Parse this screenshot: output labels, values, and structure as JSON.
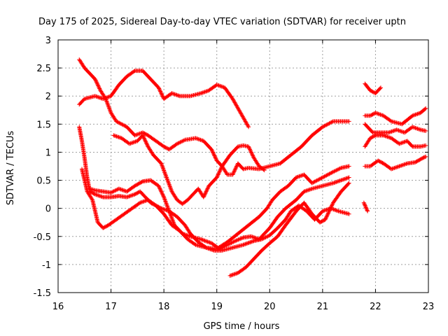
{
  "chart_data": {
    "type": "scatter",
    "title": "Day 175 of 2025, Sidereal Day-to-day VTEC variation (SDTVAR) for receiver uptn",
    "xlabel": "GPS time / hours",
    "ylabel": "SDTVAR / TECUs",
    "xlim": [
      16,
      23
    ],
    "ylim": [
      -1.5,
      3
    ],
    "xticks": [
      "16",
      "17",
      "18",
      "19",
      "20",
      "21",
      "22",
      "23"
    ],
    "yticks": [
      "-1.5",
      "-1",
      "-0.5",
      "0",
      "0.5",
      "1",
      "1.5",
      "2",
      "2.5",
      "3"
    ],
    "grid": true,
    "marker": "+",
    "color": "#ff0000",
    "series": [
      {
        "name": "s1",
        "points": [
          [
            16.4,
            2.65
          ],
          [
            16.5,
            2.5
          ],
          [
            16.7,
            2.3
          ],
          [
            16.8,
            2.1
          ],
          [
            16.9,
            1.95
          ],
          [
            17.0,
            1.7
          ],
          [
            17.1,
            1.55
          ],
          [
            17.3,
            1.45
          ],
          [
            17.45,
            1.3
          ],
          [
            17.6,
            1.35
          ],
          [
            17.7,
            1.3
          ],
          [
            17.85,
            1.2
          ],
          [
            18.0,
            1.1
          ],
          [
            18.1,
            1.05
          ],
          [
            18.25,
            1.15
          ],
          [
            18.4,
            1.22
          ],
          [
            18.6,
            1.25
          ],
          [
            18.75,
            1.2
          ],
          [
            18.9,
            1.05
          ],
          [
            19.0,
            0.85
          ],
          [
            19.1,
            0.75
          ],
          [
            19.2,
            0.6
          ],
          [
            19.3,
            0.6
          ],
          [
            19.4,
            0.8
          ],
          [
            19.5,
            0.7
          ],
          [
            19.6,
            0.72
          ],
          [
            19.8,
            0.7
          ],
          [
            20.0,
            0.75
          ],
          [
            20.2,
            0.8
          ],
          [
            20.4,
            0.95
          ],
          [
            20.6,
            1.1
          ],
          [
            20.8,
            1.3
          ],
          [
            21.0,
            1.45
          ],
          [
            21.2,
            1.55
          ],
          [
            21.5,
            1.55
          ]
        ]
      },
      {
        "name": "s2",
        "points": [
          [
            16.4,
            1.85
          ],
          [
            16.5,
            1.95
          ],
          [
            16.7,
            2.0
          ],
          [
            16.85,
            1.95
          ],
          [
            17.0,
            2.0
          ],
          [
            17.15,
            2.2
          ],
          [
            17.3,
            2.35
          ],
          [
            17.45,
            2.45
          ],
          [
            17.6,
            2.45
          ],
          [
            17.75,
            2.3
          ],
          [
            17.9,
            2.15
          ],
          [
            18.0,
            1.95
          ],
          [
            18.15,
            2.05
          ],
          [
            18.3,
            2.0
          ],
          [
            18.5,
            2.0
          ],
          [
            18.7,
            2.05
          ],
          [
            18.85,
            2.1
          ],
          [
            19.0,
            2.2
          ],
          [
            19.15,
            2.15
          ],
          [
            19.3,
            1.95
          ],
          [
            19.45,
            1.7
          ],
          [
            19.6,
            1.45
          ]
        ]
      },
      {
        "name": "s3",
        "points": [
          [
            17.05,
            1.3
          ],
          [
            17.2,
            1.25
          ],
          [
            17.35,
            1.15
          ],
          [
            17.5,
            1.2
          ],
          [
            17.6,
            1.3
          ],
          [
            17.7,
            1.1
          ],
          [
            17.8,
            0.95
          ],
          [
            17.95,
            0.8
          ],
          [
            18.05,
            0.55
          ],
          [
            18.15,
            0.3
          ],
          [
            18.25,
            0.15
          ],
          [
            18.35,
            0.08
          ],
          [
            18.45,
            0.15
          ],
          [
            18.55,
            0.25
          ],
          [
            18.65,
            0.35
          ],
          [
            18.75,
            0.2
          ],
          [
            18.85,
            0.4
          ],
          [
            19.0,
            0.55
          ],
          [
            19.1,
            0.75
          ],
          [
            19.25,
            0.95
          ],
          [
            19.4,
            1.1
          ],
          [
            19.5,
            1.12
          ],
          [
            19.6,
            1.1
          ],
          [
            19.7,
            0.9
          ],
          [
            19.8,
            0.75
          ],
          [
            19.9,
            0.68
          ]
        ]
      },
      {
        "name": "s4",
        "points": [
          [
            16.4,
            1.45
          ],
          [
            16.45,
            1.2
          ],
          [
            16.5,
            0.9
          ],
          [
            16.55,
            0.55
          ],
          [
            16.6,
            0.3
          ],
          [
            16.7,
            0.25
          ],
          [
            16.85,
            0.2
          ],
          [
            17.0,
            0.2
          ],
          [
            17.15,
            0.22
          ],
          [
            17.3,
            0.2
          ],
          [
            17.45,
            0.25
          ],
          [
            17.55,
            0.3
          ],
          [
            17.65,
            0.2
          ],
          [
            17.75,
            0.1
          ],
          [
            17.85,
            0.05
          ],
          [
            17.95,
            0.0
          ],
          [
            18.1,
            -0.05
          ],
          [
            18.25,
            -0.15
          ],
          [
            18.4,
            -0.3
          ],
          [
            18.5,
            -0.45
          ],
          [
            18.65,
            -0.6
          ],
          [
            18.8,
            -0.7
          ],
          [
            18.95,
            -0.75
          ],
          [
            19.1,
            -0.75
          ],
          [
            19.3,
            -0.7
          ],
          [
            19.5,
            -0.65
          ],
          [
            19.7,
            -0.58
          ],
          [
            19.85,
            -0.55
          ],
          [
            20.0,
            -0.48
          ],
          [
            20.15,
            -0.35
          ],
          [
            20.3,
            -0.2
          ],
          [
            20.4,
            -0.05
          ],
          [
            20.55,
            0.05
          ],
          [
            20.7,
            -0.05
          ],
          [
            20.85,
            -0.2
          ],
          [
            21.0,
            -0.05
          ],
          [
            21.15,
            0.0
          ],
          [
            21.3,
            -0.05
          ],
          [
            21.5,
            -0.1
          ]
        ]
      },
      {
        "name": "s5",
        "points": [
          [
            16.45,
            0.7
          ],
          [
            16.55,
            0.3
          ],
          [
            16.65,
            0.15
          ],
          [
            16.75,
            -0.25
          ],
          [
            16.85,
            -0.35
          ],
          [
            16.95,
            -0.3
          ],
          [
            17.1,
            -0.2
          ],
          [
            17.25,
            -0.1
          ],
          [
            17.4,
            0.0
          ],
          [
            17.55,
            0.1
          ],
          [
            17.7,
            0.15
          ],
          [
            17.85,
            0.05
          ],
          [
            18.0,
            -0.1
          ],
          [
            18.15,
            -0.3
          ],
          [
            18.3,
            -0.4
          ],
          [
            18.45,
            -0.55
          ],
          [
            18.6,
            -0.65
          ],
          [
            18.8,
            -0.7
          ],
          [
            19.0,
            -0.72
          ],
          [
            19.2,
            -0.6
          ],
          [
            19.4,
            -0.45
          ],
          [
            19.6,
            -0.3
          ],
          [
            19.8,
            -0.15
          ],
          [
            19.95,
            0.0
          ],
          [
            20.05,
            0.15
          ],
          [
            20.2,
            0.3
          ],
          [
            20.35,
            0.4
          ],
          [
            20.5,
            0.55
          ],
          [
            20.65,
            0.6
          ],
          [
            20.8,
            0.45
          ],
          [
            21.0,
            0.55
          ],
          [
            21.2,
            0.65
          ],
          [
            21.35,
            0.72
          ],
          [
            21.5,
            0.75
          ]
        ]
      },
      {
        "name": "s6",
        "points": [
          [
            16.6,
            0.35
          ],
          [
            16.7,
            0.32
          ],
          [
            16.85,
            0.3
          ],
          [
            17.0,
            0.28
          ],
          [
            17.15,
            0.35
          ],
          [
            17.3,
            0.3
          ],
          [
            17.45,
            0.4
          ],
          [
            17.6,
            0.48
          ],
          [
            17.75,
            0.5
          ],
          [
            17.9,
            0.4
          ],
          [
            18.0,
            0.2
          ],
          [
            18.1,
            -0.05
          ],
          [
            18.2,
            -0.3
          ],
          [
            18.35,
            -0.45
          ],
          [
            18.5,
            -0.5
          ],
          [
            18.7,
            -0.55
          ],
          [
            18.9,
            -0.62
          ],
          [
            19.05,
            -0.72
          ],
          [
            19.2,
            -0.65
          ],
          [
            19.35,
            -0.58
          ],
          [
            19.5,
            -0.52
          ],
          [
            19.65,
            -0.5
          ],
          [
            19.8,
            -0.55
          ],
          [
            19.9,
            -0.45
          ],
          [
            20.0,
            -0.35
          ],
          [
            20.15,
            -0.15
          ],
          [
            20.3,
            0.0
          ],
          [
            20.5,
            0.15
          ],
          [
            20.65,
            0.3
          ],
          [
            20.8,
            0.35
          ],
          [
            21.0,
            0.4
          ],
          [
            21.2,
            0.45
          ],
          [
            21.5,
            0.55
          ]
        ]
      },
      {
        "name": "s7",
        "points": [
          [
            19.25,
            -1.2
          ],
          [
            19.4,
            -1.15
          ],
          [
            19.55,
            -1.05
          ],
          [
            19.7,
            -0.9
          ],
          [
            19.85,
            -0.75
          ],
          [
            20.0,
            -0.62
          ],
          [
            20.15,
            -0.5
          ],
          [
            20.3,
            -0.3
          ],
          [
            20.5,
            -0.05
          ],
          [
            20.65,
            0.1
          ],
          [
            20.8,
            -0.1
          ],
          [
            20.95,
            -0.25
          ],
          [
            21.05,
            -0.2
          ],
          [
            21.2,
            0.1
          ],
          [
            21.35,
            0.3
          ],
          [
            21.5,
            0.45
          ]
        ]
      },
      {
        "name": "s8",
        "points": [
          [
            21.8,
            2.22
          ],
          [
            21.9,
            2.1
          ],
          [
            22.0,
            2.05
          ],
          [
            22.1,
            2.15
          ]
        ]
      },
      {
        "name": "s9",
        "points": [
          [
            21.8,
            1.65
          ],
          [
            21.9,
            1.65
          ],
          [
            22.0,
            1.7
          ],
          [
            22.15,
            1.65
          ],
          [
            22.3,
            1.55
          ],
          [
            22.5,
            1.5
          ],
          [
            22.7,
            1.65
          ],
          [
            22.85,
            1.7
          ],
          [
            22.95,
            1.78
          ]
        ]
      },
      {
        "name": "s10",
        "points": [
          [
            21.8,
            1.5
          ],
          [
            21.95,
            1.35
          ],
          [
            22.1,
            1.35
          ],
          [
            22.25,
            1.35
          ],
          [
            22.4,
            1.4
          ],
          [
            22.55,
            1.35
          ],
          [
            22.7,
            1.45
          ],
          [
            22.85,
            1.4
          ],
          [
            22.95,
            1.38
          ]
        ]
      },
      {
        "name": "s11",
        "points": [
          [
            21.8,
            1.1
          ],
          [
            21.9,
            1.25
          ],
          [
            22.0,
            1.3
          ],
          [
            22.15,
            1.3
          ],
          [
            22.3,
            1.25
          ],
          [
            22.45,
            1.15
          ],
          [
            22.6,
            1.2
          ],
          [
            22.7,
            1.1
          ],
          [
            22.85,
            1.1
          ],
          [
            22.95,
            1.12
          ]
        ]
      },
      {
        "name": "s12",
        "points": [
          [
            21.8,
            0.75
          ],
          [
            21.9,
            0.75
          ],
          [
            22.05,
            0.85
          ],
          [
            22.15,
            0.8
          ],
          [
            22.3,
            0.7
          ],
          [
            22.45,
            0.75
          ],
          [
            22.6,
            0.8
          ],
          [
            22.75,
            0.82
          ],
          [
            22.9,
            0.9
          ],
          [
            22.95,
            0.92
          ]
        ]
      },
      {
        "name": "s13",
        "points": [
          [
            21.78,
            0.1
          ],
          [
            21.85,
            -0.05
          ]
        ]
      }
    ]
  }
}
